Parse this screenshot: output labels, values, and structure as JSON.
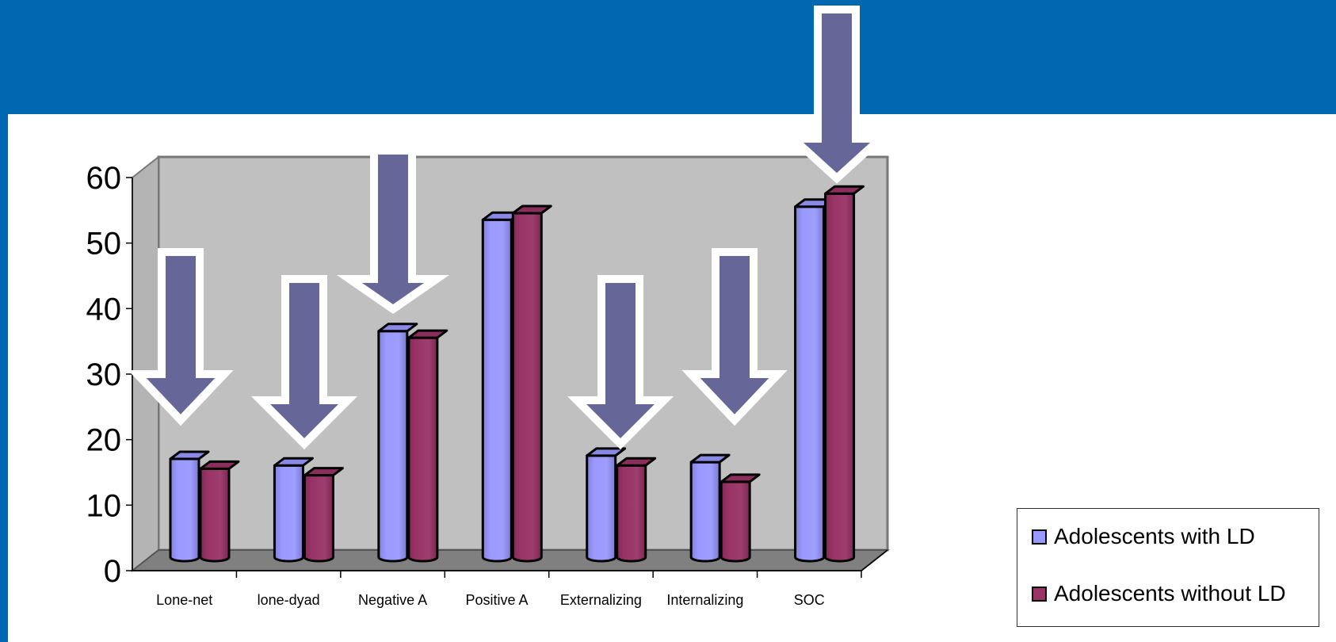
{
  "chart_data": {
    "type": "bar",
    "categories": [
      "Lone-net",
      "lone-dyad",
      "Negative A",
      "Positive A",
      "Externalizing",
      "Internalizing",
      "SOC"
    ],
    "series": [
      {
        "name": "Adolescents with LD",
        "values": [
          15,
          14,
          34.5,
          51.5,
          15.5,
          14.5,
          53.5
        ],
        "color": "#9999ff"
      },
      {
        "name": "Adolescents without LD",
        "values": [
          13.5,
          12.5,
          33.5,
          52.5,
          14,
          11.5,
          55.5
        ],
        "color": "#993366"
      }
    ],
    "yticks": [
      0,
      10,
      20,
      30,
      40,
      50,
      60
    ],
    "ylim": [
      0,
      60
    ],
    "grid": false,
    "legend_position": "bottom-right",
    "highlight_arrows": [
      "Lone-net",
      "lone-dyad",
      "Negative A",
      "Externalizing",
      "Internalizing",
      "SOC"
    ],
    "arrow_color": "#666699",
    "background_color": "#0067b1",
    "plot_wall_color": "#c0c0c0",
    "plot_floor_color": "#808080"
  }
}
